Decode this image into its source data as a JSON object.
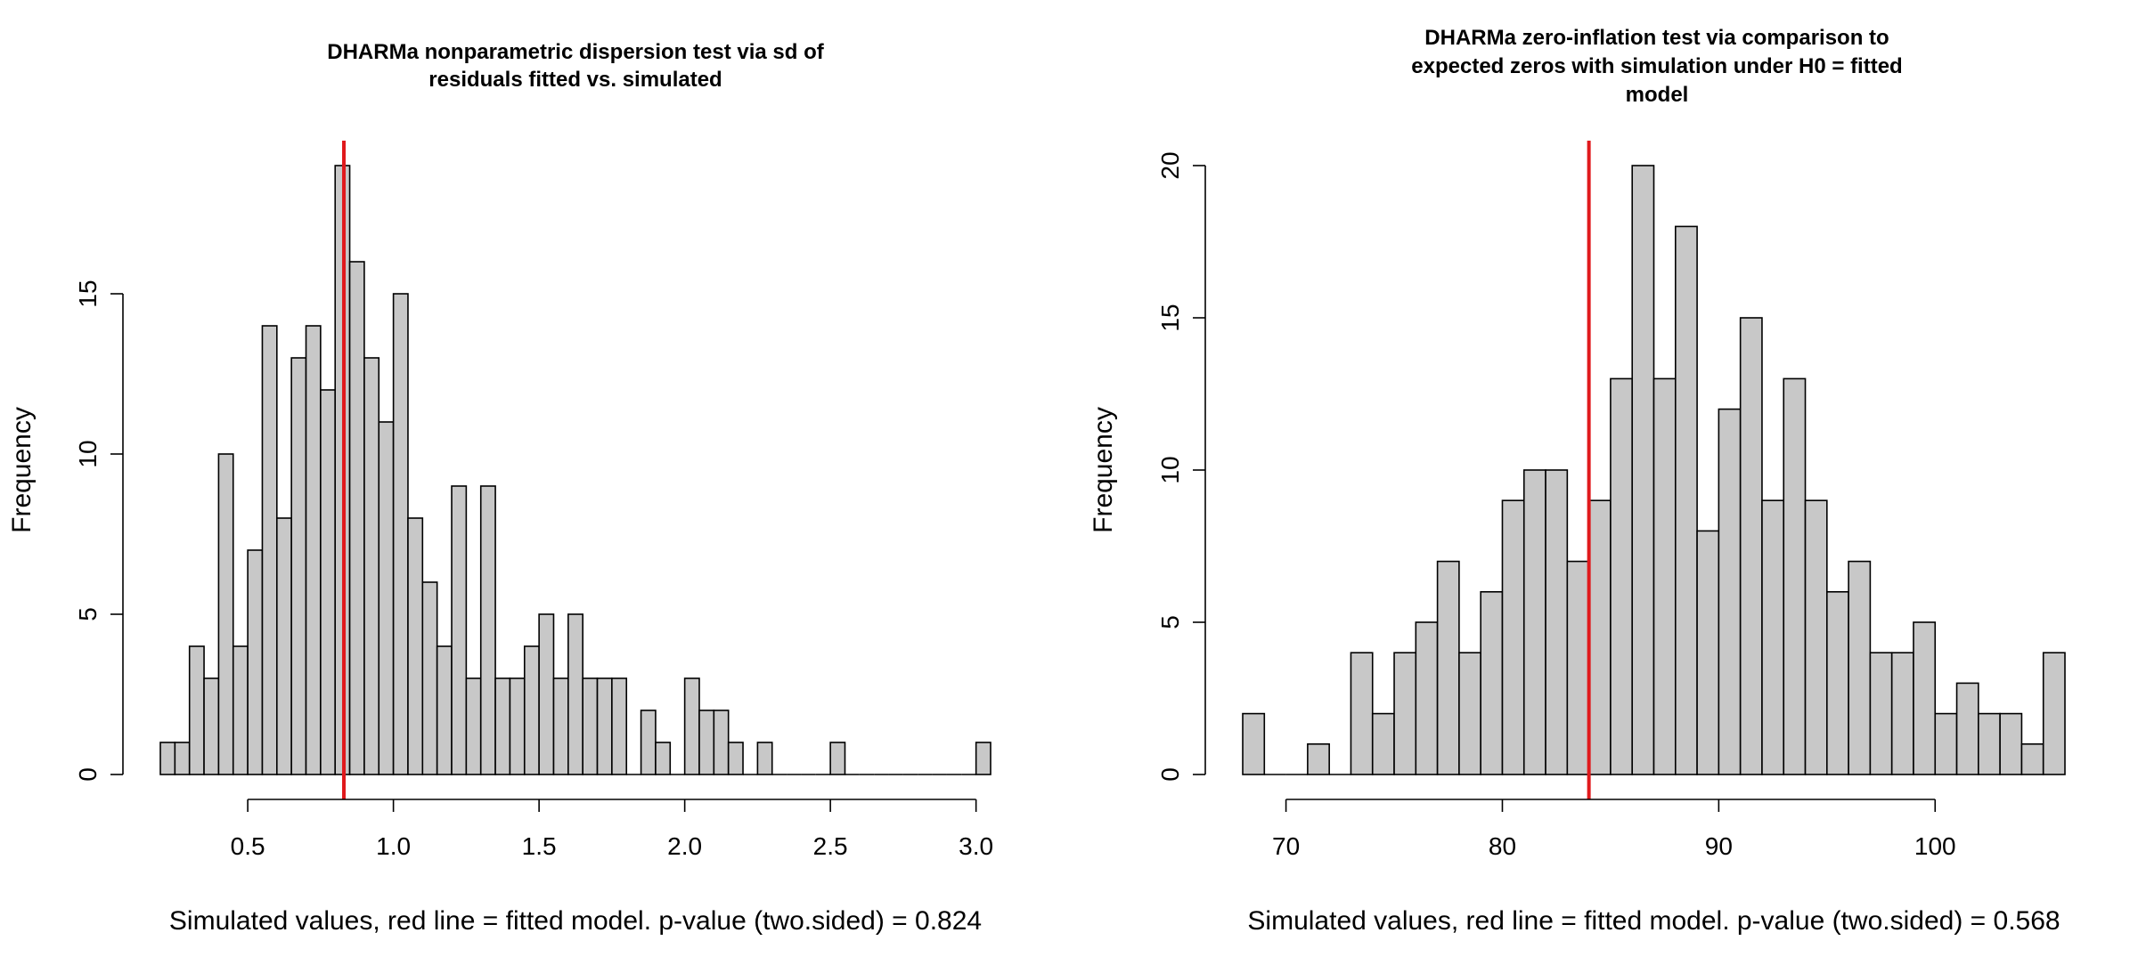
{
  "colors": {
    "bar_fill": "#c8c8c8",
    "bar_stroke": "#000000",
    "reference_line": "#e0191c"
  },
  "chart_data": [
    {
      "type": "bar",
      "title": [
        "DHARMa nonparametric dispersion test via sd of",
        "residuals fitted vs. simulated"
      ],
      "xlabel": "Simulated values, red line = fitted model. p-value (two.sided) = 0.824",
      "ylabel": "Frequency",
      "bin_start": 0.2,
      "bin_width": 0.05,
      "values": [
        1,
        1,
        4,
        3,
        10,
        4,
        7,
        14,
        8,
        13,
        14,
        12,
        19,
        16,
        13,
        11,
        15,
        8,
        6,
        4,
        9,
        3,
        9,
        3,
        3,
        4,
        5,
        3,
        5,
        3,
        3,
        3,
        0,
        2,
        1,
        0,
        3,
        2,
        2,
        1,
        0,
        1,
        0,
        0,
        0,
        0,
        1,
        0,
        0,
        0,
        0,
        0,
        0,
        0,
        0,
        0,
        1
      ],
      "reference_value": 0.83,
      "xlim": [
        0.2,
        3.05
      ],
      "ylim": [
        0,
        19
      ],
      "xticks": [
        0.5,
        1.0,
        1.5,
        2.0,
        2.5,
        3.0
      ],
      "xtick_labels": [
        "0.5",
        "1.0",
        "1.5",
        "2.0",
        "2.5",
        "3.0"
      ],
      "yticks": [
        0,
        5,
        10,
        15
      ],
      "ytick_labels": [
        "0",
        "5",
        "10",
        "15"
      ],
      "grid": false,
      "legend": "none"
    },
    {
      "type": "bar",
      "title": [
        "DHARMa zero-inflation test via comparison to",
        "expected zeros with simulation under H0 = fitted",
        "model"
      ],
      "xlabel": "Simulated values, red line = fitted model. p-value (two.sided) = 0.568",
      "ylabel": "Frequency",
      "bin_start": 68,
      "bin_width": 1,
      "values": [
        2,
        0,
        0,
        1,
        0,
        4,
        2,
        4,
        5,
        7,
        4,
        6,
        9,
        10,
        10,
        7,
        9,
        13,
        20,
        13,
        18,
        8,
        12,
        15,
        9,
        13,
        9,
        6,
        7,
        4,
        4,
        5,
        2,
        3,
        2,
        2,
        1,
        4
      ],
      "reference_value": 84,
      "xlim": [
        68,
        106
      ],
      "ylim": [
        0,
        20
      ],
      "xticks": [
        70,
        80,
        90,
        100
      ],
      "xtick_labels": [
        "70",
        "80",
        "90",
        "100"
      ],
      "yticks": [
        0,
        5,
        10,
        15,
        20
      ],
      "ytick_labels": [
        "0",
        "5",
        "10",
        "15",
        "20"
      ],
      "grid": false,
      "legend": "none"
    }
  ]
}
